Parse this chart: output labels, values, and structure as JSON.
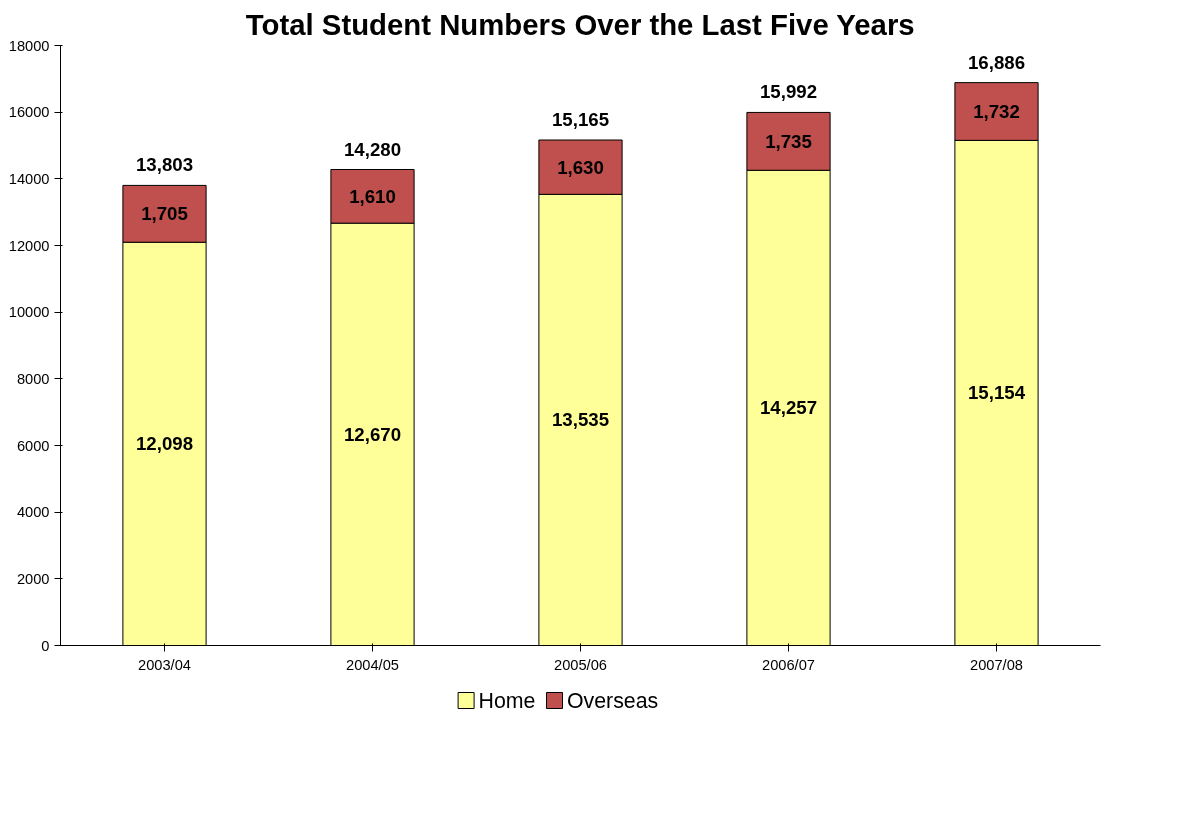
{
  "chart_data": {
    "type": "bar",
    "title": "Total Student Numbers Over the Last Five Years",
    "categories": [
      "2003/04",
      "2004/05",
      "2005/06",
      "2006/07",
      "2007/08"
    ],
    "stacked": true,
    "series": [
      {
        "name": "Home",
        "color": "#ffff99",
        "values": [
          12098,
          12670,
          13535,
          14257,
          15154
        ],
        "value_labels": [
          "12,098",
          "12,670",
          "13,535",
          "14,257",
          "15,154"
        ]
      },
      {
        "name": "Overseas",
        "color": "#c0504d",
        "values": [
          1705,
          1610,
          1630,
          1735,
          1732
        ],
        "value_labels": [
          "1,705",
          "1,610",
          "1,630",
          "1,735",
          "1,732"
        ]
      }
    ],
    "totals": [
      "13,803",
      "14,280",
      "15,165",
      "15,992",
      "16,886"
    ],
    "ylim": [
      0,
      18000
    ],
    "yticks": [
      0,
      2000,
      4000,
      6000,
      8000,
      10000,
      12000,
      14000,
      16000,
      18000
    ],
    "grid": false,
    "legend": "bottom"
  }
}
